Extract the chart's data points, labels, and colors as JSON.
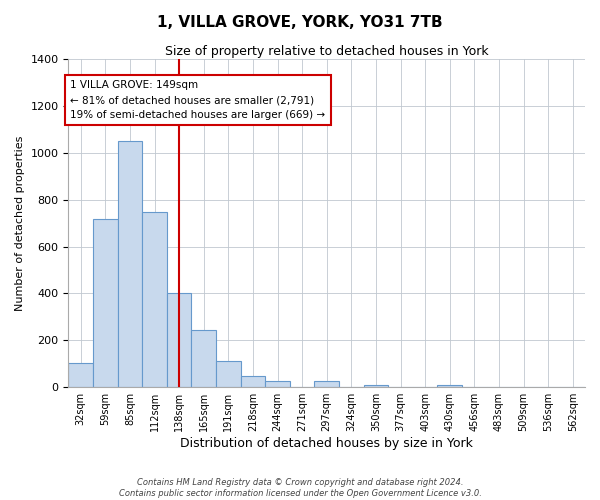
{
  "title": "1, VILLA GROVE, YORK, YO31 7TB",
  "subtitle": "Size of property relative to detached houses in York",
  "xlabel": "Distribution of detached houses by size in York",
  "ylabel": "Number of detached properties",
  "bar_color": "#c8d9ed",
  "bar_edgecolor": "#6699cc",
  "bar_linewidth": 0.8,
  "background_color": "#ffffff",
  "grid_color": "#c0c8d0",
  "categories": [
    "32sqm",
    "59sqm",
    "85sqm",
    "112sqm",
    "138sqm",
    "165sqm",
    "191sqm",
    "218sqm",
    "244sqm",
    "271sqm",
    "297sqm",
    "324sqm",
    "350sqm",
    "377sqm",
    "403sqm",
    "430sqm",
    "456sqm",
    "483sqm",
    "509sqm",
    "536sqm",
    "562sqm"
  ],
  "values": [
    105,
    720,
    1050,
    748,
    400,
    243,
    113,
    48,
    27,
    0,
    27,
    0,
    10,
    0,
    0,
    10,
    0,
    0,
    0,
    0,
    0
  ],
  "ylim": [
    0,
    1400
  ],
  "yticks": [
    0,
    200,
    400,
    600,
    800,
    1000,
    1200,
    1400
  ],
  "vline_color": "#cc0000",
  "annotation_title": "1 VILLA GROVE: 149sqm",
  "annotation_line1": "← 81% of detached houses are smaller (2,791)",
  "annotation_line2": "19% of semi-detached houses are larger (669) →",
  "annotation_box_color": "#ffffff",
  "annotation_box_edgecolor": "#cc0000",
  "footnote1": "Contains HM Land Registry data © Crown copyright and database right 2024.",
  "footnote2": "Contains public sector information licensed under the Open Government Licence v3.0."
}
